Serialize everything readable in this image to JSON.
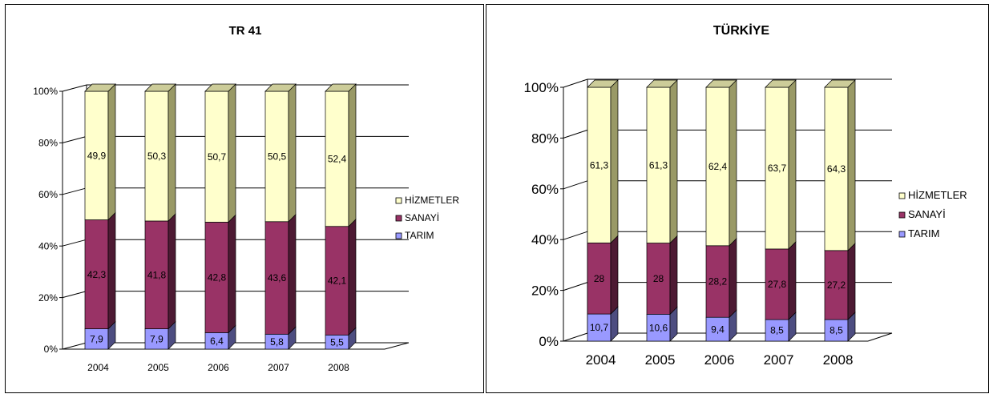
{
  "colors": {
    "HIZMETLER": "#FFFFCC",
    "HIZMETLER_side": "#999966",
    "HIZMETLER_top": "#CCCC99",
    "SANAYI": "#993366",
    "SANAYI_side": "#4D1A33",
    "TARIM": "#9999FF",
    "TARIM_side": "#4D4D80",
    "back_wall": "#FFFFFF",
    "grid": "#000000"
  },
  "chart_data": [
    {
      "type": "bar",
      "stacked": "percent",
      "title": "TR 41",
      "categories": [
        "2004",
        "2005",
        "2006",
        "2007",
        "2008"
      ],
      "yticks": [
        "0%",
        "20%",
        "40%",
        "60%",
        "80%",
        "100%"
      ],
      "ylim": [
        0,
        100
      ],
      "legend_position": "right",
      "series": [
        {
          "name": "TARIM",
          "values": [
            7.9,
            7.9,
            6.4,
            5.8,
            5.5
          ],
          "labels": [
            "7,9",
            "7,9",
            "6,4",
            "5,8",
            "5,5"
          ]
        },
        {
          "name": "SANAYİ",
          "values": [
            42.3,
            41.8,
            42.8,
            43.6,
            42.1
          ],
          "labels": [
            "42,3",
            "41,8",
            "42,8",
            "43,6",
            "42,1"
          ]
        },
        {
          "name": "HİZMETLER",
          "values": [
            49.9,
            50.3,
            50.7,
            50.5,
            52.4
          ],
          "labels": [
            "49,9",
            "50,3",
            "50,7",
            "50,5",
            "52,4"
          ]
        }
      ]
    },
    {
      "type": "bar",
      "stacked": "percent",
      "title": "TÜRKİYE",
      "categories": [
        "2004",
        "2005",
        "2006",
        "2007",
        "2008"
      ],
      "yticks": [
        "0%",
        "20%",
        "40%",
        "60%",
        "80%",
        "100%"
      ],
      "ylim": [
        0,
        100
      ],
      "legend_position": "right",
      "series": [
        {
          "name": "TARIM",
          "values": [
            10.7,
            10.6,
            9.4,
            8.5,
            8.5
          ],
          "labels": [
            "10,7",
            "10,6",
            "9,4",
            "8,5",
            "8,5"
          ]
        },
        {
          "name": "SANAYİ",
          "values": [
            28,
            28,
            28.2,
            27.8,
            27.2
          ],
          "labels": [
            "28",
            "28",
            "28,2",
            "27,8",
            "27,2"
          ]
        },
        {
          "name": "HİZMETLER",
          "values": [
            61.3,
            61.3,
            62.4,
            63.7,
            64.3
          ],
          "labels": [
            "61,3",
            "61,3",
            "62,4",
            "63,7",
            "64,3"
          ]
        }
      ]
    }
  ]
}
